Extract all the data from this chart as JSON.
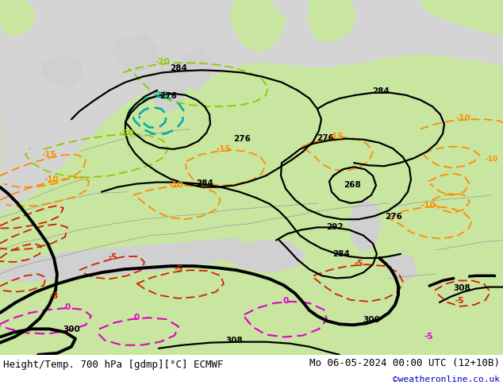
{
  "title_left": "Height/Temp. 700 hPa [gdmp][°C] ECMWF",
  "title_right": "Mo 06-05-2024 00:00 UTC (12+10B)",
  "credit": "©weatheronline.co.uk",
  "bg_color": "#e0e0e0",
  "land_color": "#c8e6a0",
  "sea_color": "#d0d0d0",
  "border_color": "#888888",
  "geo_color": "#000000",
  "temp_green_color": "#88cc00",
  "temp_orange_color": "#ff8c00",
  "temp_red_color": "#cc2200",
  "temp_cyan_color": "#00aaaa",
  "temp_magenta_color": "#dd00cc",
  "label_fontsize": 7.5,
  "title_fontsize": 9,
  "credit_fontsize": 8,
  "credit_color": "#0000cc"
}
